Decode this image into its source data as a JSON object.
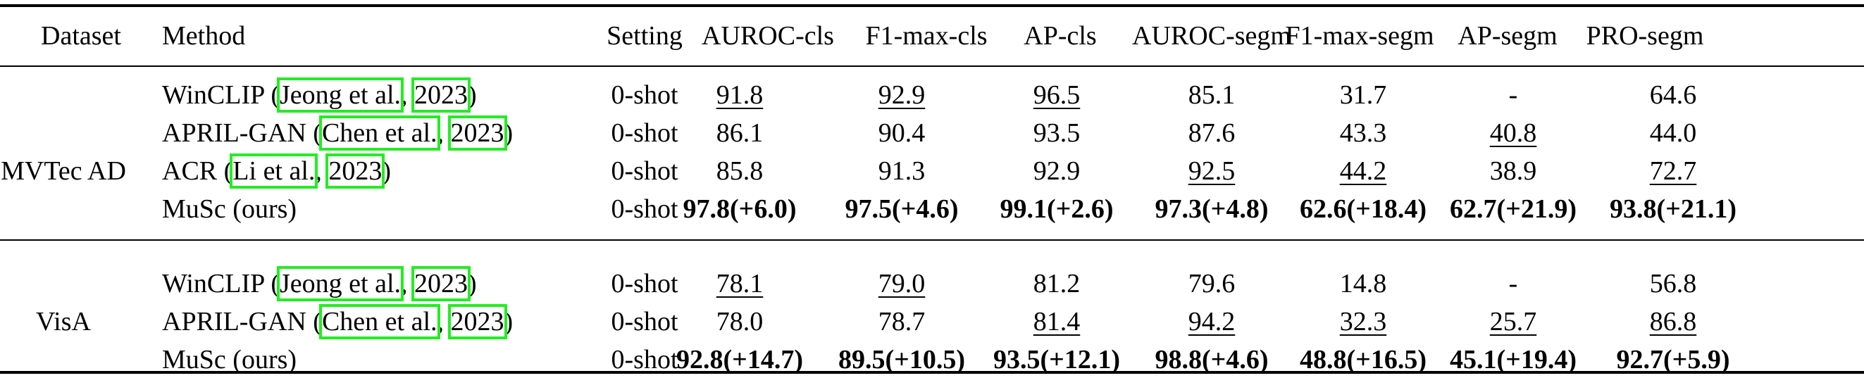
{
  "header": [
    "Dataset",
    "Method",
    "Setting",
    "AUROC-cls",
    "F1-max-cls",
    "AP-cls",
    "AUROC-segm",
    "F1-max-segm",
    "AP-segm",
    "PRO-segm"
  ],
  "groups": [
    {
      "dataset": "MVTec AD",
      "rows": [
        {
          "method_name": "WinCLIP",
          "cite_author": "Jeong et al.",
          "cite_sep": ",",
          "cite_year": "2023",
          "has_cite": true,
          "setting": "0-shot",
          "values": [
            "91.8",
            "92.9",
            "96.5",
            "85.1",
            "31.7",
            "-",
            "64.6"
          ],
          "style": [
            "u",
            "u",
            "u",
            "",
            "",
            "",
            ""
          ]
        },
        {
          "method_name": "APRIL-GAN",
          "cite_author": "Chen et al.",
          "cite_sep": ",",
          "cite_year": "2023",
          "has_cite": true,
          "setting": "0-shot",
          "values": [
            "86.1",
            "90.4",
            "93.5",
            "87.6",
            "43.3",
            "40.8",
            "44.0"
          ],
          "style": [
            "",
            "",
            "",
            "",
            "",
            "u",
            ""
          ]
        },
        {
          "method_name": "ACR",
          "cite_author": "Li et al.",
          "cite_sep": ",",
          "cite_year": "2023",
          "has_cite": true,
          "setting": "0-shot",
          "values": [
            "85.8",
            "91.3",
            "92.9",
            "92.5",
            "44.2",
            "38.9",
            "72.7"
          ],
          "style": [
            "",
            "",
            "",
            "u",
            "u",
            "",
            "u"
          ]
        },
        {
          "method_name": "MuSc (ours)",
          "has_cite": false,
          "setting": "0-shot",
          "values": [
            "97.8(+6.0)",
            "97.5(+4.6)",
            "99.1(+2.6)",
            "97.3(+4.8)",
            "62.6(+18.4)",
            "62.7(+21.9)",
            "93.8(+21.1)"
          ],
          "style": [
            "b",
            "b",
            "b",
            "b",
            "b",
            "b",
            "b"
          ]
        }
      ]
    },
    {
      "dataset": "VisA",
      "rows": [
        {
          "method_name": "WinCLIP",
          "cite_author": "Jeong et al.",
          "cite_sep": ",",
          "cite_year": "2023",
          "has_cite": true,
          "setting": "0-shot",
          "values": [
            "78.1",
            "79.0",
            "81.2",
            "79.6",
            "14.8",
            "-",
            "56.8"
          ],
          "style": [
            "u",
            "u",
            "",
            "",
            "",
            "",
            ""
          ]
        },
        {
          "method_name": "APRIL-GAN",
          "cite_author": "Chen et al.",
          "cite_sep": ",",
          "cite_year": "2023",
          "has_cite": true,
          "setting": "0-shot",
          "values": [
            "78.0",
            "78.7",
            "81.4",
            "94.2",
            "32.3",
            "25.7",
            "86.8"
          ],
          "style": [
            "",
            "",
            "u",
            "u",
            "u",
            "u",
            "u"
          ]
        },
        {
          "method_name": "MuSc (ours)",
          "has_cite": false,
          "setting": "0-shot",
          "values": [
            "92.8(+14.7)",
            "89.5(+10.5)",
            "93.5(+12.1)",
            "98.8(+4.6)",
            "48.8(+16.5)",
            "45.1(+19.4)",
            "92.7(+5.9)"
          ],
          "style": [
            "b",
            "b",
            "b",
            "b",
            "b",
            "b",
            "b"
          ]
        }
      ]
    }
  ]
}
